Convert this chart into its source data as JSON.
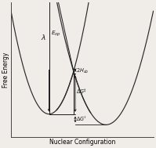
{
  "title": "",
  "xlabel": "Nuclear Configuration",
  "ylabel": "Free Energy",
  "background_color": "#f0ede8",
  "curve_color": "#2a2a2a",
  "annotation_color": "#1a1a1a",
  "figsize": [
    1.99,
    1.89
  ],
  "dpi": 100,
  "c1": -0.38,
  "c2": 0.62,
  "m1": 0.0,
  "m2": -0.13,
  "k1": 2.8,
  "k2": 2.0,
  "x_range": [
    -1.05,
    1.45
  ],
  "y_range": [
    -0.28,
    1.35
  ]
}
